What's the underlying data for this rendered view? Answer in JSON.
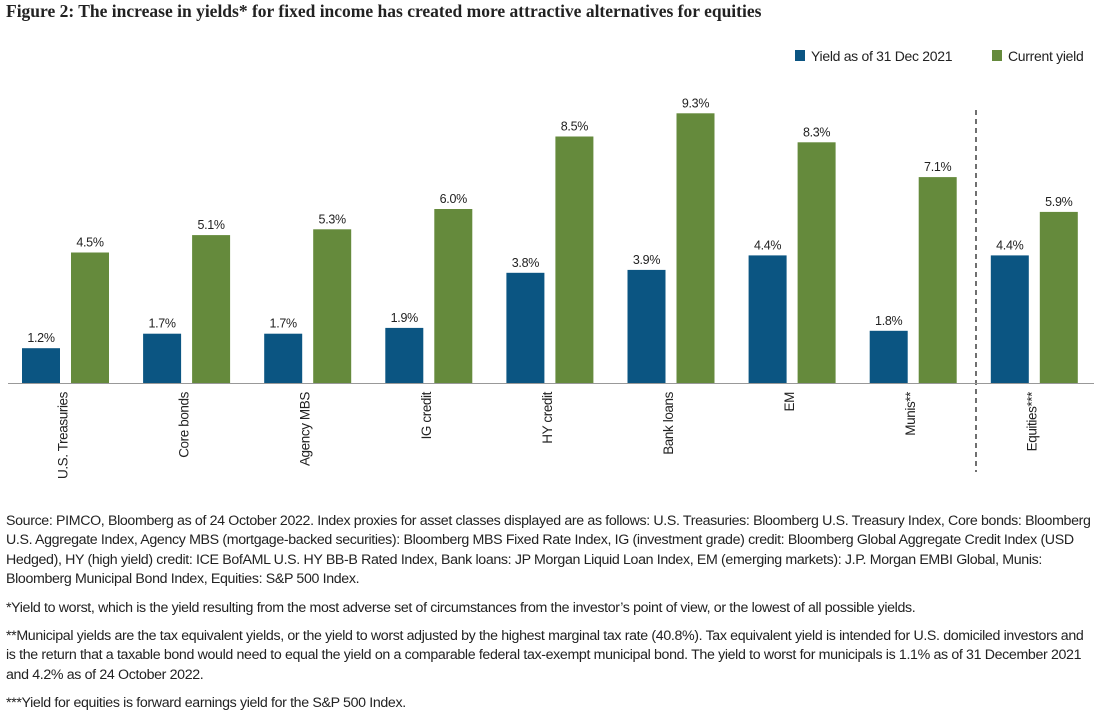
{
  "chart_data": {
    "type": "bar",
    "title": "Figure 2: The increase in yields* for fixed income has created more attractive alternatives for equities",
    "categories": [
      "U.S. Treasuries",
      "Core bonds",
      "Agency MBS",
      "IG credit",
      "HY credit",
      "Bank loans",
      "EM",
      "Munis**",
      "Equities***"
    ],
    "series": [
      {
        "name": "Yield as of 31 Dec 2021",
        "color": "#0b5582",
        "values": [
          1.2,
          1.7,
          1.7,
          1.9,
          3.8,
          3.9,
          4.4,
          1.8,
          4.4
        ],
        "value_labels": [
          "1.2%",
          "1.7%",
          "1.7%",
          "1.9%",
          "3.8%",
          "3.9%",
          "4.4%",
          "1.8%",
          "4.4%"
        ]
      },
      {
        "name": "Current yield",
        "color": "#658a3c",
        "values": [
          4.5,
          5.1,
          5.3,
          6.0,
          8.5,
          9.3,
          8.3,
          7.1,
          5.9
        ],
        "value_labels": [
          "4.5%",
          "5.1%",
          "5.3%",
          "6.0%",
          "8.5%",
          "9.3%",
          "8.3%",
          "7.1%",
          "5.9%"
        ]
      }
    ],
    "notes": [
      "Source: PIMCO, Bloomberg as of 24 October 2022. Index proxies for asset classes displayed are as follows: U.S. Treasuries: Bloomberg U.S. Treasury Index, Core bonds: Bloomberg U.S. Aggregate Index, Agency MBS (mortgage-backed securities): Bloomberg MBS Fixed Rate Index, IG (investment grade) credit: Bloomberg Global Aggregate Credit Index (USD Hedged), HY (high yield) credit: ICE BofAML U.S. HY BB-B Rated Index, Bank loans: JP Morgan Liquid Loan Index, EM (emerging markets): J.P. Morgan EMBI Global, Munis: Bloomberg Municipal Bond Index, Equities: S&P 500 Index.",
      "*Yield to worst, which is the yield resulting from the most adverse set of circumstances from the investor’s point of view, or the lowest of all possible yields.",
      "**Municipal yields are the tax equivalent yields, or the yield to worst adjusted by the highest marginal tax rate (40.8%). Tax equivalent yield is intended for U.S. domiciled investors and is the return that a taxable bond would need to equal the yield on a comparable federal tax-exempt municipal bond. The yield to worst for municipals is 1.1% as of 31 December 2021 and 4.2% as of 24 October 2022.",
      "***Yield for equities is forward earnings yield for the S&P 500 Index."
    ]
  }
}
